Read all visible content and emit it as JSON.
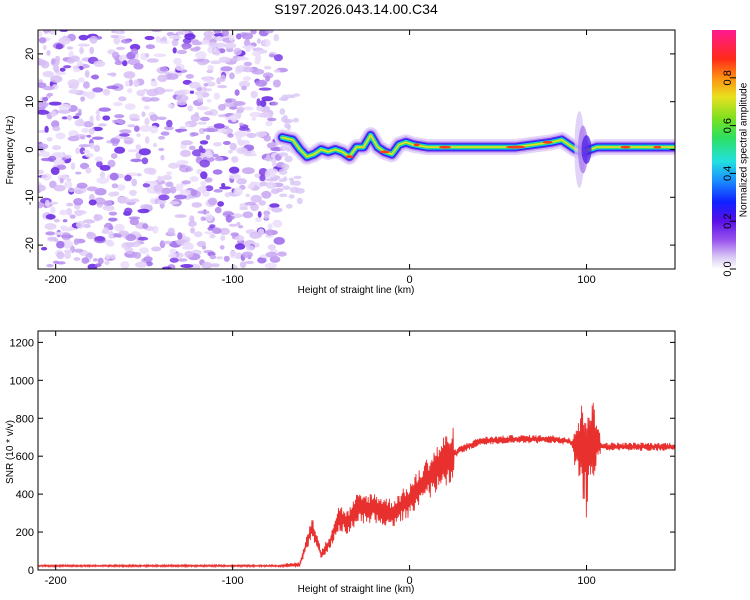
{
  "title": "S197.2026.043.14.00.C34",
  "chart_data": [
    {
      "type": "heatmap",
      "name": "spectrogram",
      "xlabel": "Height of straight line (km)",
      "ylabel": "Frequency (Hz)",
      "xlim": [
        -210,
        150
      ],
      "ylim": [
        -25,
        25
      ],
      "x_ticks": [
        -200,
        -100,
        0,
        100
      ],
      "x_tick_labels": [
        "-200",
        "-100",
        "0",
        "100"
      ],
      "y_ticks": [
        -20,
        -10,
        0,
        10,
        20
      ],
      "y_tick_labels": [
        "-20",
        "-10",
        "0",
        "10",
        "20"
      ],
      "noise_region_x": [
        -210,
        -72
      ],
      "ridge": {
        "x": [
          -72,
          -66,
          -62,
          -58,
          -54,
          -50,
          -46,
          -42,
          -38,
          -34,
          -30,
          -26,
          -22,
          -18,
          -14,
          -10,
          -6,
          -2,
          2,
          10,
          20,
          40,
          60,
          80,
          86,
          90,
          94,
          98,
          102,
          106,
          110,
          130,
          150
        ],
        "y": [
          2.5,
          2,
          0,
          -1.5,
          -1,
          0,
          -0.5,
          0,
          -0.5,
          -1.5,
          0.5,
          0.5,
          3,
          0.5,
          -0.5,
          -1,
          1,
          1.5,
          1,
          0.5,
          0.5,
          0.5,
          0.5,
          1.5,
          2,
          1,
          0,
          -0.5,
          0,
          0.5,
          0.5,
          0.5,
          0.5
        ]
      }
    },
    {
      "type": "colorbar",
      "name": "amplitude-colorbar",
      "label": "Normalized spectral amplitude",
      "range": [
        0,
        1
      ],
      "ticks": [
        0,
        0.2,
        0.4,
        0.6,
        0.8
      ],
      "tick_labels": [
        "0.0",
        "0.2",
        "0.4",
        "0.6",
        "0.8"
      ]
    },
    {
      "type": "line",
      "name": "snr-line",
      "xlabel": "Height of straight line (km)",
      "ylabel": "SNR (10 * v/v)",
      "xlim": [
        -210,
        150
      ],
      "ylim": [
        0,
        1260
      ],
      "x_ticks": [
        -200,
        -100,
        0,
        100
      ],
      "x_tick_labels": [
        "-200",
        "-100",
        "0",
        "100"
      ],
      "y_ticks": [
        0,
        200,
        400,
        600,
        800,
        1000,
        1200
      ],
      "y_tick_labels": [
        "0",
        "200",
        "400",
        "600",
        "800",
        "1000",
        "1200"
      ],
      "color": "#e8312f",
      "series": [
        {
          "name": "SNR",
          "x": [
            -210,
            -150,
            -100,
            -70,
            -62,
            -55,
            -50,
            -45,
            -40,
            -35,
            -30,
            -20,
            -10,
            0,
            10,
            20,
            30,
            40,
            60,
            80,
            90,
            95,
            100,
            103,
            110,
            130,
            150
          ],
          "y": [
            22,
            22,
            22,
            22,
            30,
            230,
            80,
            150,
            280,
            250,
            320,
            330,
            300,
            370,
            480,
            580,
            640,
            680,
            690,
            690,
            680,
            640,
            620,
            680,
            650,
            650,
            650
          ]
        }
      ]
    }
  ]
}
